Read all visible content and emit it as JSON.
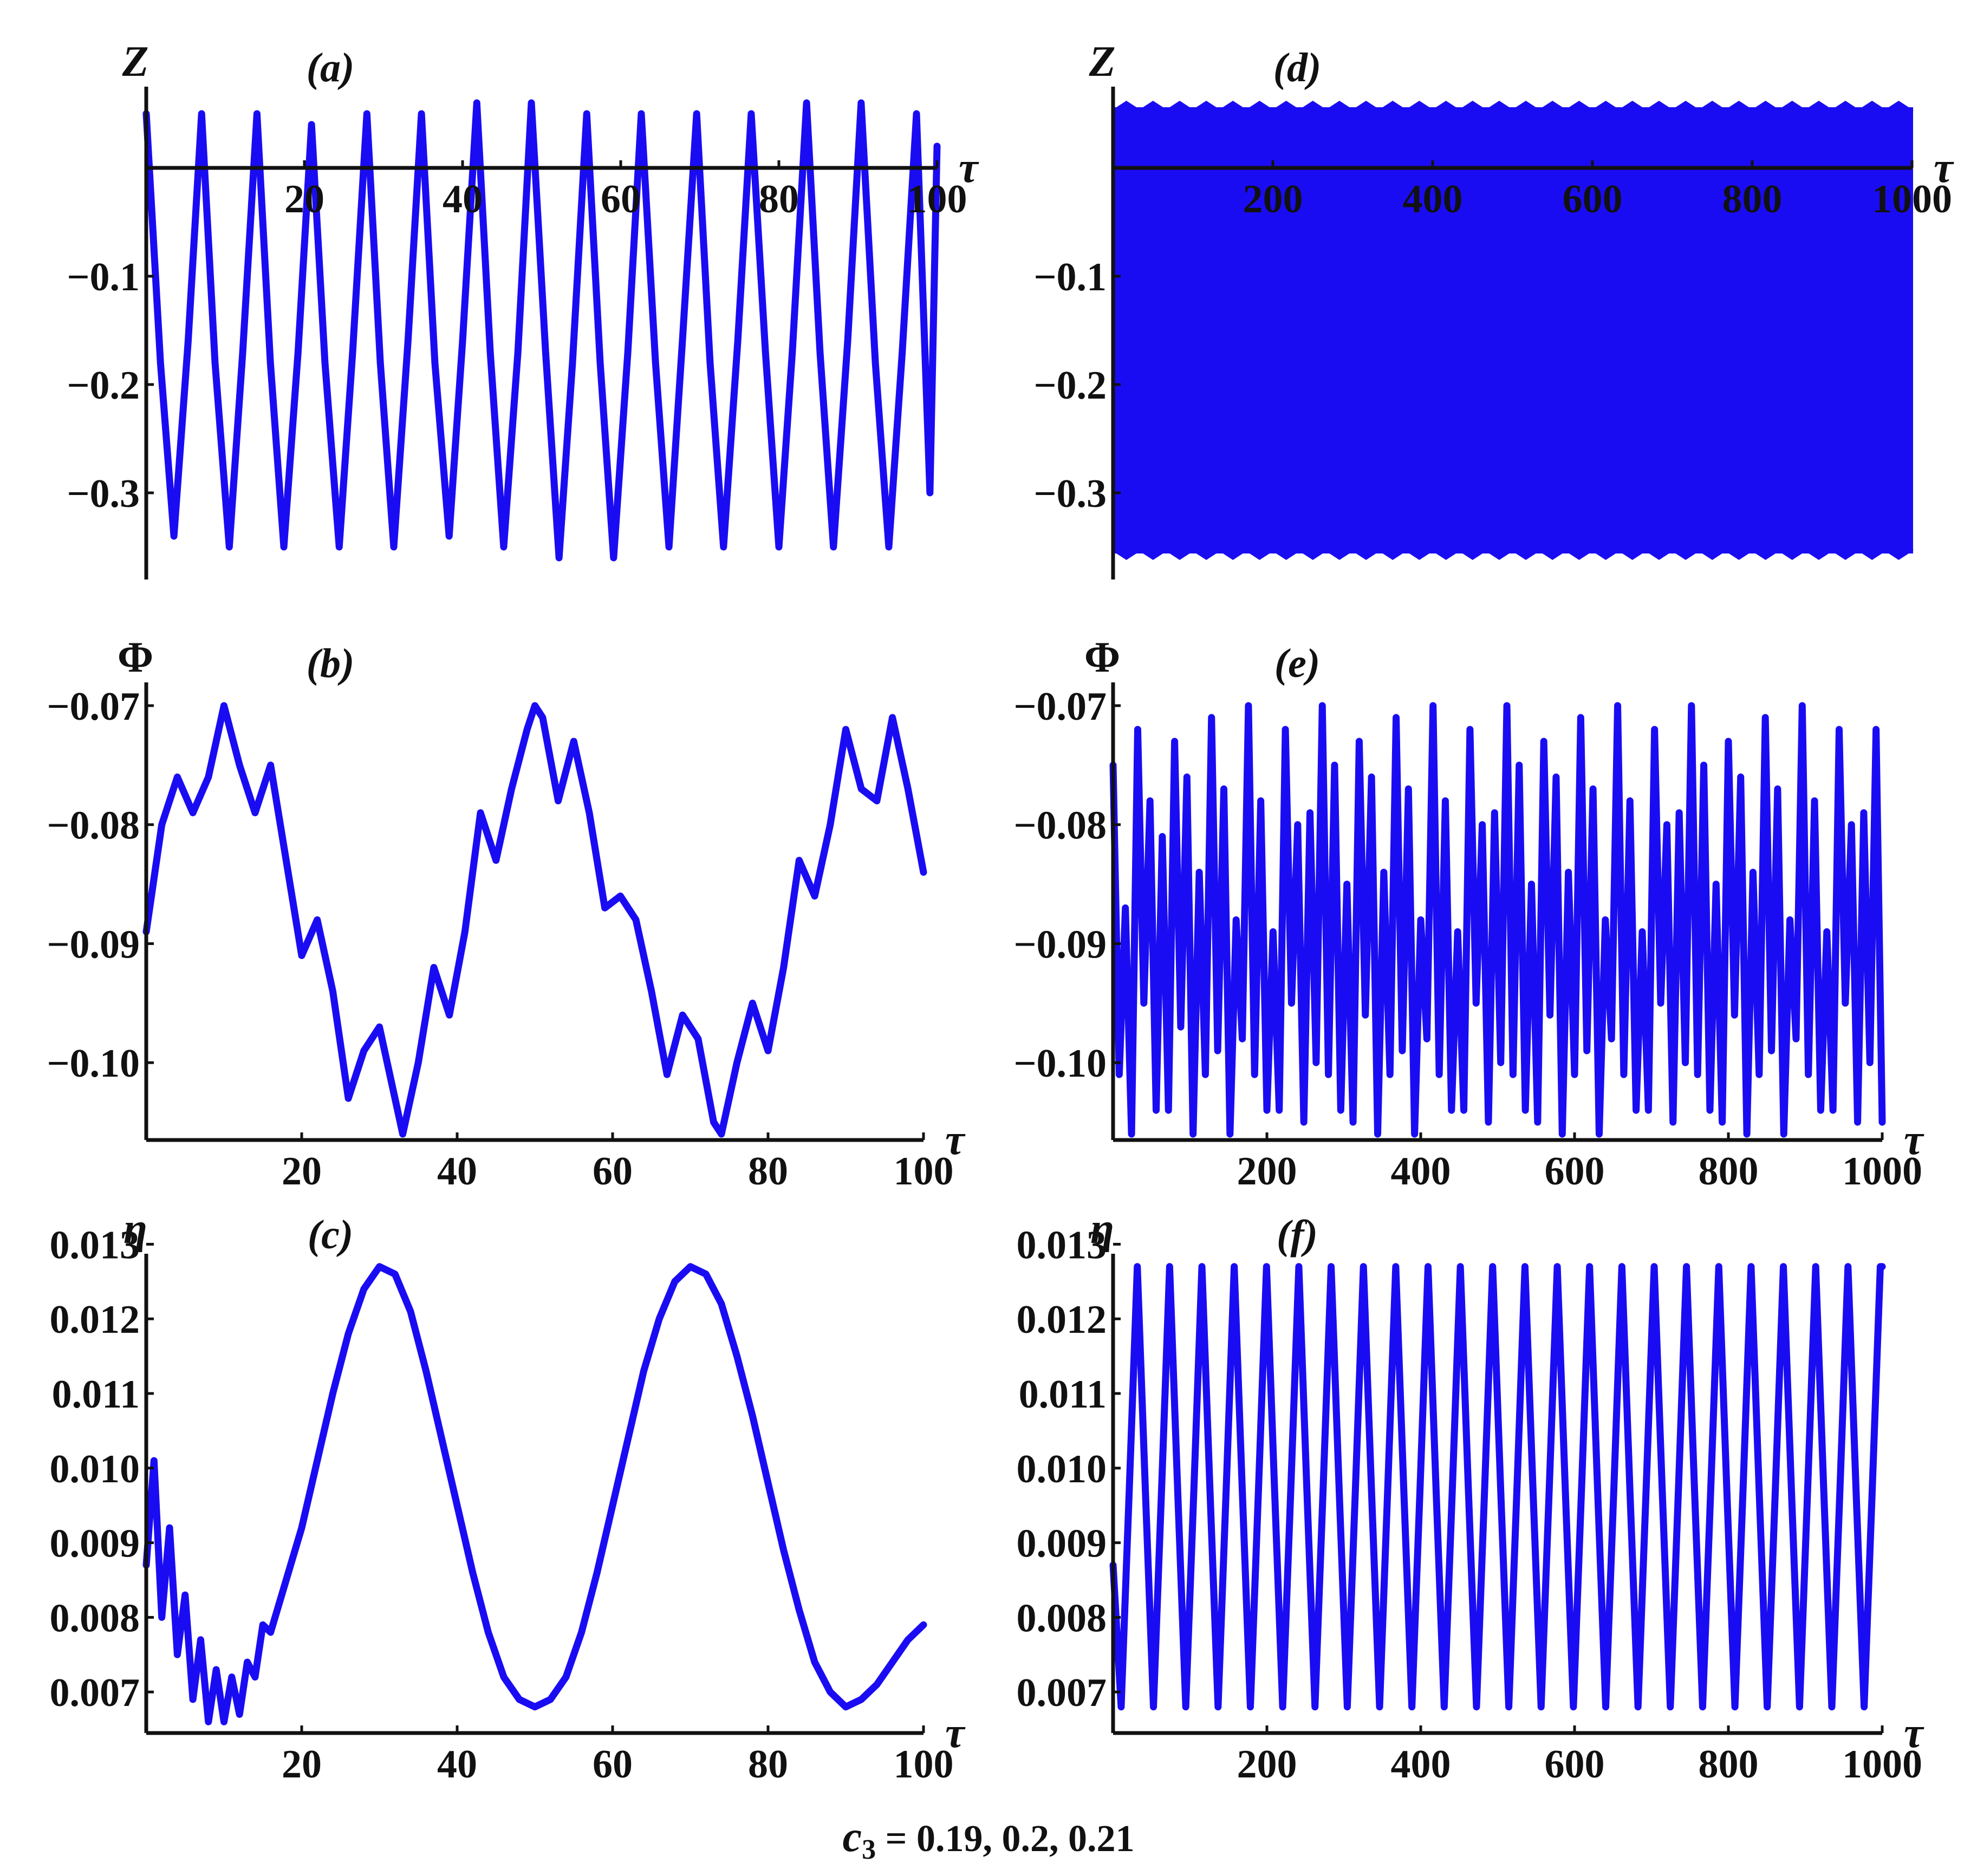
{
  "figure": {
    "caption_var": "c",
    "caption_sub": "3",
    "caption_rest": " = 0.19, 0.2, 0.21",
    "line_color": "#1a0cf2",
    "axis_color": "#111111"
  },
  "chart_data": [
    {
      "panel": "(a)",
      "type": "line",
      "ylabel": "Z",
      "xlabel": "τ",
      "xlim": [
        0,
        100
      ],
      "ylim": [
        -0.38,
        0.07
      ],
      "xticks": [
        "20",
        "40",
        "60",
        "80",
        "100"
      ],
      "yticks": [
        "−0.1",
        "−0.2",
        "−0.3"
      ],
      "series": [
        {
          "x": [
            0,
            1.8,
            3.5,
            5.3,
            7.0,
            8.7,
            10.5,
            12.2,
            14.0,
            15.7,
            17.4,
            19.2,
            20.9,
            22.6,
            24.4,
            26.1,
            27.9,
            29.6,
            31.3,
            33.1,
            34.8,
            36.5,
            38.3,
            40.0,
            41.8,
            43.5,
            45.2,
            47.0,
            48.7,
            50.5,
            52.2,
            53.9,
            55.7,
            57.4,
            59.1,
            60.9,
            62.6,
            64.4,
            66.1,
            67.8,
            69.6,
            71.3,
            73.0,
            74.8,
            76.5,
            78.3,
            80.0,
            81.7,
            83.5,
            85.2,
            86.9,
            88.7,
            90.4,
            92.2,
            93.9,
            95.6,
            97.4,
            99.1,
            100
          ],
          "y": [
            0.05,
            -0.18,
            -0.34,
            -0.16,
            0.05,
            -0.18,
            -0.35,
            -0.17,
            0.05,
            -0.18,
            -0.35,
            -0.17,
            0.04,
            -0.18,
            -0.35,
            -0.17,
            0.05,
            -0.18,
            -0.35,
            -0.16,
            0.05,
            -0.18,
            -0.34,
            -0.16,
            0.06,
            -0.17,
            -0.35,
            -0.17,
            0.06,
            -0.17,
            -0.36,
            -0.18,
            0.05,
            -0.18,
            -0.36,
            -0.17,
            0.05,
            -0.18,
            -0.35,
            -0.16,
            0.05,
            -0.18,
            -0.35,
            -0.16,
            0.05,
            -0.17,
            -0.35,
            -0.17,
            0.06,
            -0.17,
            -0.35,
            -0.16,
            0.06,
            -0.18,
            -0.35,
            -0.17,
            0.05,
            -0.3,
            0.02
          ]
        }
      ]
    },
    {
      "panel": "(b)",
      "type": "line",
      "ylabel": "Φ",
      "xlabel": "τ",
      "xlim": [
        0,
        100
      ],
      "ylim": [
        -0.1065,
        -0.0685
      ],
      "xticks": [
        "20",
        "40",
        "60",
        "80",
        "100"
      ],
      "yticks": [
        "−0.07",
        "−0.08",
        "−0.09",
        "−0.10"
      ],
      "series": [
        {
          "x": [
            0,
            2,
            4,
            6,
            8,
            10,
            12,
            14,
            16,
            18,
            20,
            22,
            24,
            26,
            28,
            30,
            32,
            33,
            35,
            37,
            39,
            41,
            43,
            45,
            47,
            49,
            50,
            51,
            53,
            55,
            57,
            59,
            61,
            63,
            65,
            67,
            69,
            71,
            73,
            74,
            76,
            78,
            80,
            82,
            84,
            86,
            88,
            90,
            92,
            94,
            96,
            98,
            100
          ],
          "y": [
            -0.089,
            -0.08,
            -0.076,
            -0.079,
            -0.076,
            -0.07,
            -0.075,
            -0.079,
            -0.075,
            -0.083,
            -0.091,
            -0.088,
            -0.094,
            -0.103,
            -0.099,
            -0.097,
            -0.103,
            -0.106,
            -0.1,
            -0.092,
            -0.096,
            -0.089,
            -0.079,
            -0.083,
            -0.077,
            -0.072,
            -0.07,
            -0.071,
            -0.078,
            -0.073,
            -0.079,
            -0.087,
            -0.086,
            -0.088,
            -0.094,
            -0.101,
            -0.096,
            -0.098,
            -0.105,
            -0.106,
            -0.1,
            -0.095,
            -0.099,
            -0.092,
            -0.083,
            -0.086,
            -0.08,
            -0.072,
            -0.077,
            -0.078,
            -0.071,
            -0.077,
            -0.084
          ]
        }
      ]
    },
    {
      "panel": "(c)",
      "type": "line",
      "ylabel": "η",
      "xlabel": "τ",
      "xlim": [
        0,
        100
      ],
      "ylim": [
        0.00645,
        0.0128
      ],
      "xticks": [
        "20",
        "40",
        "60",
        "80",
        "100"
      ],
      "yticks": [
        "0.013",
        "0.012",
        "0.011",
        "0.010",
        "0.009",
        "0.008",
        "0.007"
      ],
      "series": [
        {
          "x": [
            0,
            1,
            2,
            3,
            4,
            5,
            6,
            7,
            8,
            9,
            10,
            11,
            12,
            13,
            14,
            15,
            16,
            18,
            20,
            22,
            24,
            26,
            28,
            30,
            32,
            34,
            36,
            38,
            40,
            42,
            44,
            46,
            48,
            50,
            52,
            54,
            56,
            58,
            60,
            62,
            64,
            66,
            68,
            70,
            72,
            74,
            76,
            78,
            80,
            82,
            84,
            86,
            88,
            90,
            92,
            94,
            96,
            98,
            100
          ],
          "y": [
            0.0087,
            0.0101,
            0.008,
            0.0092,
            0.0075,
            0.0083,
            0.0069,
            0.0077,
            0.0066,
            0.0073,
            0.0066,
            0.0072,
            0.0067,
            0.0074,
            0.0072,
            0.0079,
            0.0078,
            0.0085,
            0.0092,
            0.0101,
            0.011,
            0.0118,
            0.0124,
            0.0127,
            0.0126,
            0.0121,
            0.0113,
            0.0104,
            0.0095,
            0.0086,
            0.0078,
            0.0072,
            0.0069,
            0.0068,
            0.0069,
            0.0072,
            0.0078,
            0.0086,
            0.0095,
            0.0104,
            0.0113,
            0.012,
            0.0125,
            0.0127,
            0.0126,
            0.0122,
            0.0115,
            0.0107,
            0.0098,
            0.0089,
            0.0081,
            0.0074,
            0.007,
            0.0068,
            0.0069,
            0.0071,
            0.0074,
            0.0077,
            0.0079
          ]
        }
      ]
    },
    {
      "panel": "(d)",
      "type": "area",
      "ylabel": "Z",
      "xlabel": "τ",
      "xlim": [
        0,
        1000
      ],
      "ylim": [
        -0.38,
        0.07
      ],
      "xticks": [
        "200",
        "400",
        "600",
        "800",
        "1000"
      ],
      "yticks": [
        "−0.1",
        "−0.2",
        "−0.3"
      ],
      "series": [
        {
          "x": [
            0,
            1000
          ],
          "y_max": [
            0.055,
            0.055
          ],
          "y_min": [
            -0.355,
            -0.355
          ]
        }
      ]
    },
    {
      "panel": "(e)",
      "type": "line",
      "ylabel": "Φ",
      "xlabel": "τ",
      "xlim": [
        0,
        1000
      ],
      "ylim": [
        -0.1065,
        -0.0685
      ],
      "xticks": [
        "200",
        "400",
        "600",
        "800",
        "1000"
      ],
      "yticks": [
        "−0.07",
        "−0.08",
        "−0.09",
        "−0.10"
      ],
      "series": [
        {
          "x": [
            0,
            8,
            16,
            24,
            32,
            40,
            48,
            56,
            64,
            72,
            80,
            88,
            96,
            104,
            112,
            120,
            128,
            136,
            144,
            152,
            160,
            168,
            176,
            184,
            192,
            200,
            208,
            216,
            224,
            232,
            240,
            248,
            256,
            264,
            272,
            280,
            288,
            296,
            304,
            312,
            320,
            328,
            336,
            344,
            352,
            360,
            368,
            376,
            384,
            392,
            400,
            408,
            416,
            424,
            432,
            440,
            448,
            456,
            464,
            472,
            480,
            488,
            496,
            504,
            512,
            520,
            528,
            536,
            544,
            552,
            560,
            568,
            576,
            584,
            592,
            600,
            608,
            616,
            624,
            632,
            640,
            648,
            656,
            664,
            672,
            680,
            688,
            696,
            704,
            712,
            720,
            728,
            736,
            744,
            752,
            760,
            768,
            776,
            784,
            792,
            800,
            808,
            816,
            824,
            832,
            840,
            848,
            856,
            864,
            872,
            880,
            888,
            896,
            904,
            912,
            920,
            928,
            936,
            944,
            952,
            960,
            968,
            976,
            984,
            992,
            1000
          ],
          "y": [
            -0.075,
            -0.101,
            -0.087,
            -0.106,
            -0.072,
            -0.095,
            -0.078,
            -0.104,
            -0.081,
            -0.104,
            -0.073,
            -0.097,
            -0.076,
            -0.106,
            -0.084,
            -0.101,
            -0.071,
            -0.099,
            -0.077,
            -0.106,
            -0.088,
            -0.098,
            -0.07,
            -0.101,
            -0.078,
            -0.104,
            -0.089,
            -0.104,
            -0.072,
            -0.095,
            -0.08,
            -0.105,
            -0.079,
            -0.1,
            -0.07,
            -0.101,
            -0.075,
            -0.104,
            -0.085,
            -0.105,
            -0.073,
            -0.096,
            -0.076,
            -0.106,
            -0.084,
            -0.101,
            -0.071,
            -0.099,
            -0.077,
            -0.106,
            -0.088,
            -0.098,
            -0.07,
            -0.101,
            -0.078,
            -0.104,
            -0.089,
            -0.104,
            -0.072,
            -0.095,
            -0.08,
            -0.105,
            -0.079,
            -0.1,
            -0.07,
            -0.101,
            -0.075,
            -0.104,
            -0.085,
            -0.105,
            -0.073,
            -0.096,
            -0.076,
            -0.106,
            -0.084,
            -0.101,
            -0.071,
            -0.099,
            -0.077,
            -0.106,
            -0.088,
            -0.098,
            -0.07,
            -0.101,
            -0.078,
            -0.104,
            -0.089,
            -0.104,
            -0.072,
            -0.095,
            -0.08,
            -0.105,
            -0.079,
            -0.1,
            -0.07,
            -0.101,
            -0.075,
            -0.104,
            -0.085,
            -0.105,
            -0.073,
            -0.096,
            -0.076,
            -0.106,
            -0.084,
            -0.101,
            -0.071,
            -0.099,
            -0.077,
            -0.106,
            -0.088,
            -0.098,
            -0.07,
            -0.101,
            -0.078,
            -0.104,
            -0.089,
            -0.104,
            -0.072,
            -0.095,
            -0.08,
            -0.105,
            -0.079,
            -0.1,
            -0.072,
            -0.105
          ]
        }
      ]
    },
    {
      "panel": "(f)",
      "type": "line",
      "ylabel": "η",
      "xlabel": "τ",
      "xlim": [
        0,
        1000
      ],
      "ylim": [
        0.00645,
        0.0128
      ],
      "xticks": [
        "200",
        "400",
        "600",
        "800",
        "1000"
      ],
      "yticks": [
        "0.013",
        "0.012",
        "0.011",
        "0.010",
        "0.009",
        "0.008",
        "0.007"
      ],
      "series": [
        {
          "x": [
            0,
            10.5,
            21,
            31.5,
            42,
            52.5,
            63,
            73.5,
            84,
            94.5,
            105,
            115.5,
            126,
            136.5,
            147,
            157.5,
            168,
            178.5,
            189,
            199.5,
            210,
            220.5,
            231,
            241.5,
            252,
            262.5,
            273,
            283.5,
            294,
            304.5,
            315,
            325.5,
            336,
            346.5,
            357,
            367.5,
            378,
            388.5,
            399,
            409.5,
            420,
            430.5,
            441,
            451.5,
            462,
            472.5,
            483,
            493.5,
            504,
            514.5,
            525,
            535.5,
            546,
            556.5,
            567,
            577.5,
            588,
            598.5,
            609,
            619.5,
            630,
            640.5,
            651,
            661.5,
            672,
            682.5,
            693,
            703.5,
            714,
            724.5,
            735,
            745.5,
            756,
            766.5,
            777,
            787.5,
            798,
            808.5,
            819,
            829.5,
            840,
            850.5,
            861,
            871.5,
            882,
            892.5,
            903,
            913.5,
            924,
            934.5,
            945,
            955.5,
            966,
            976.5,
            987,
            997.5,
            1000
          ],
          "y": [
            0.0087,
            0.0068,
            0.0097,
            0.0127,
            0.0097,
            0.0068,
            0.0097,
            0.0127,
            0.0097,
            0.0068,
            0.0097,
            0.0127,
            0.0097,
            0.0068,
            0.0097,
            0.0127,
            0.0097,
            0.0068,
            0.0097,
            0.0127,
            0.0097,
            0.0068,
            0.0097,
            0.0127,
            0.0097,
            0.0068,
            0.0097,
            0.0127,
            0.0097,
            0.0068,
            0.0097,
            0.0127,
            0.0097,
            0.0068,
            0.0097,
            0.0127,
            0.0097,
            0.0068,
            0.0097,
            0.0127,
            0.0097,
            0.0068,
            0.0097,
            0.0127,
            0.0097,
            0.0068,
            0.0097,
            0.0127,
            0.0097,
            0.0068,
            0.0097,
            0.0127,
            0.0097,
            0.0068,
            0.0097,
            0.0127,
            0.0097,
            0.0068,
            0.0097,
            0.0127,
            0.0097,
            0.0068,
            0.0097,
            0.0127,
            0.0097,
            0.0068,
            0.0097,
            0.0127,
            0.0097,
            0.0068,
            0.0097,
            0.0127,
            0.0097,
            0.0068,
            0.0097,
            0.0127,
            0.0097,
            0.0068,
            0.0097,
            0.0127,
            0.0097,
            0.0068,
            0.0097,
            0.0127,
            0.0097,
            0.0068,
            0.0097,
            0.0127,
            0.0097,
            0.0068,
            0.0097,
            0.0127,
            0.0097,
            0.0068,
            0.0097,
            0.0127,
            0.0127
          ]
        }
      ]
    }
  ]
}
